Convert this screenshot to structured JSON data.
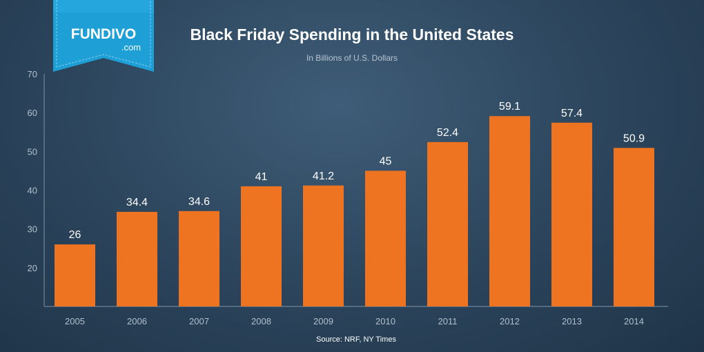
{
  "brand": {
    "name": "FUNDIVO",
    "domain": ".com",
    "ribbon_color": "#1e9fd6"
  },
  "chart_data": {
    "type": "bar",
    "title": "Black Friday Spending in the United States",
    "subtitle": "In Billions of U.S. Dollars",
    "categories": [
      "2005",
      "2006",
      "2007",
      "2008",
      "2009",
      "2010",
      "2011",
      "2012",
      "2013",
      "2014"
    ],
    "values": [
      26,
      34.4,
      34.6,
      41,
      41.2,
      45,
      52.4,
      59.1,
      57.4,
      50.9
    ],
    "value_labels": [
      "26",
      "34.4",
      "34.6",
      "41",
      "41.2",
      "45",
      "52.4",
      "59.1",
      "57.4",
      "50.9"
    ],
    "xlabel": "",
    "ylabel": "",
    "ylim": [
      10,
      70
    ],
    "yticks": [
      20,
      30,
      40,
      50,
      60,
      70
    ],
    "grid": false,
    "bar_color": "#ee7421",
    "source": "Source: NRF, NY Times"
  }
}
